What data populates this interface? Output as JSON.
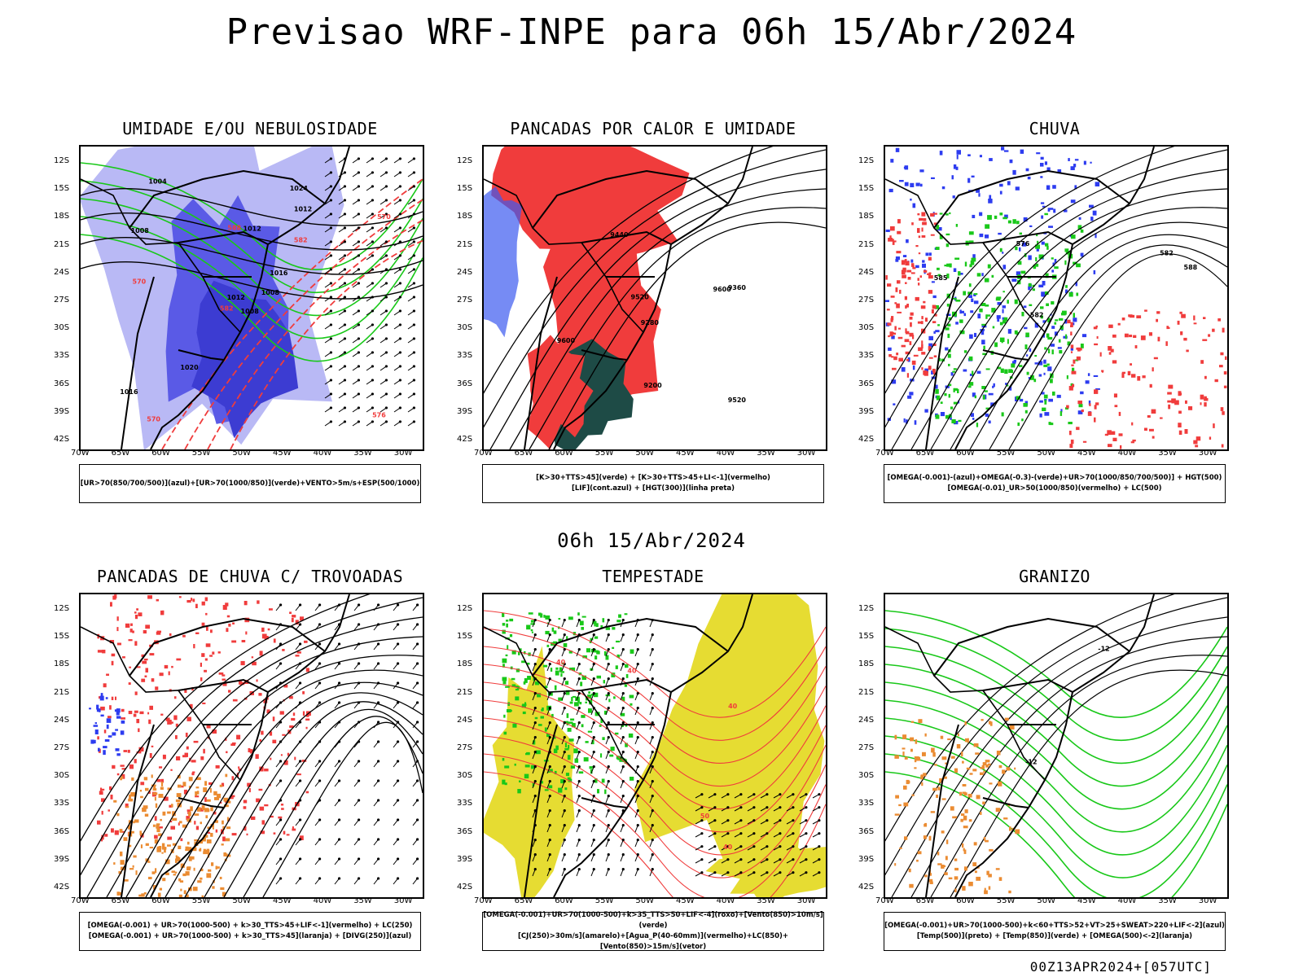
{
  "title": "Previsao WRF-INPE  para 06h 15/Abr/2024",
  "subtitle": "06h 15/Abr/2024",
  "footer": "00Z13APR2024+[057UTC]",
  "lat_ticks": [
    "12S",
    "15S",
    "18S",
    "21S",
    "24S",
    "27S",
    "30S",
    "33S",
    "36S",
    "39S",
    "42S"
  ],
  "lon_ticks": [
    "70W",
    "65W",
    "60W",
    "55W",
    "50W",
    "45W",
    "40W",
    "35W",
    "30W"
  ],
  "panels": [
    {
      "title": "UMIDADE E/OU NEBULOSIDADE",
      "legend": [
        "[UR>70(850/700/500)](azul)+[UR>70(1000/850)](verde)+VENTO>5m/s+ESP(500/1000)"
      ],
      "contour_labels": [
        "1008",
        "1008",
        "1012",
        "1016",
        "1016",
        "1020",
        "1024",
        "1012",
        "1012",
        "1008",
        "1004",
        "576",
        "570",
        "570",
        "582",
        "582",
        "570",
        "588"
      ]
    },
    {
      "title": "PANCADAS POR CALOR E UMIDADE",
      "legend": [
        "[K>30+TTS>45](verde) + [K>30+TTS>45+LI<-1](vermelho)",
        "[LIF](cont.azul) + [HGT(300)](linha preta)"
      ],
      "contour_labels": [
        "9600",
        "9520",
        "9360",
        "9280",
        "9200",
        "9440",
        "9520",
        "9600"
      ]
    },
    {
      "title": "CHUVA",
      "legend": [
        "[OMEGA(-0.001)-(azul)+OMEGA(-0.3)-(verde)+UR>70(1000/850/700/500)] + HGT(500)",
        "[OMEGA(-0.01)_UR>50(1000/850)(vermelho) + LC(500)"
      ],
      "contour_labels": [
        "588",
        "582",
        "585",
        "582",
        "576"
      ]
    },
    {
      "title": "PANCADAS DE CHUVA C/ TROVOADAS",
      "legend": [
        "[OMEGA(-0.001) + UR>70(1000-500) + k>30_TTS>45+LIF<-1](vermelho) + LC(250)",
        "[OMEGA(-0.001) + UR>70(1000-500) + k>30_TTS>45](laranja) + [DIVG(250)](azul)"
      ],
      "contour_labels": []
    },
    {
      "title": "TEMPESTADE",
      "legend": [
        "[OMEGA(-0.001)+UR>70(1000-500)+k>35_TTS>50+LIF<-4](roxo)+[Vento(850)>10m/s](verde)",
        "[CJ(250)>30m/s](amarelo)+[Agua_P(40-60mm)](vermelho)+LC(850)+[Vento(850)>15m/s](vetor)"
      ],
      "contour_labels": [
        "40",
        "40",
        "40",
        "50",
        "40"
      ]
    },
    {
      "title": "GRANIZO",
      "legend": [
        "[OMEGA(-0.001)+UR>70(1000-500)+k<60+TTS>52+VT>25+SWEAT>220+LIF<-2](azul)",
        "[Temp(500)](preto) + [Temp(850)](verde) + [OMEGA(500)<-2](laranja)"
      ],
      "contour_labels": [
        "-12",
        "-12"
      ]
    }
  ],
  "colors": {
    "blue_light": "#b9b9f5",
    "blue": "#5a5ae6",
    "blue_dark": "#3c3cd2",
    "green": "#19c819",
    "red": "#f03c3c",
    "dark_teal": "#1e4b46",
    "yellow": "#e6dc32",
    "orange": "#eb8c32",
    "contour_black": "#000000"
  }
}
